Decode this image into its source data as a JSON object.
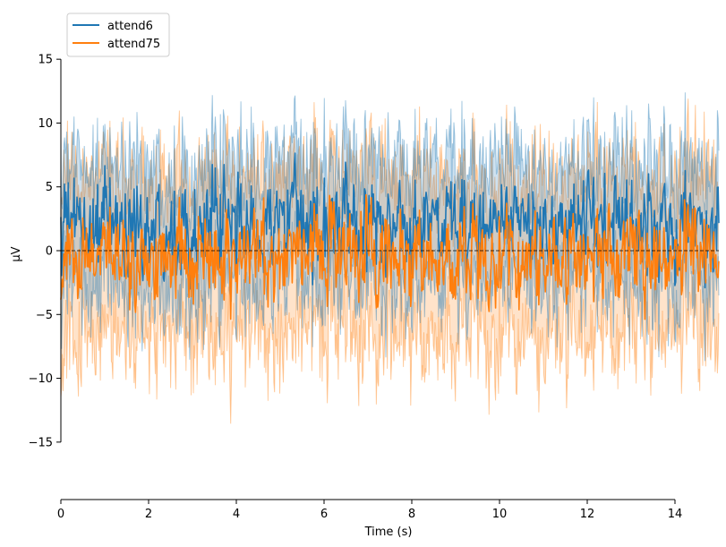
{
  "chart_data": {
    "type": "line",
    "xlabel": "Time (s)",
    "ylabel": "µV",
    "xlim": [
      0,
      15
    ],
    "ylim": [
      -19.5,
      19.5
    ],
    "x_ticks": [
      0,
      2,
      4,
      6,
      8,
      10,
      12,
      14
    ],
    "x_tick_labels": [
      "0",
      "2",
      "4",
      "6",
      "8",
      "10",
      "12",
      "14"
    ],
    "y_ticks": [
      -15,
      -10,
      -5,
      0,
      5,
      10,
      15
    ],
    "y_tick_labels": [
      "−15",
      "−10",
      "−5",
      "0",
      "5",
      "10",
      "15"
    ],
    "x_axis_span": [
      0,
      14
    ],
    "y_axis_span": [
      -15,
      15
    ],
    "legend_position": "top-left",
    "zero_line": true,
    "series": [
      {
        "name": "attend6",
        "color": "#1f77b4",
        "mean_level": 2.0,
        "mean_spread": 2.5,
        "band_half_width": 5.0,
        "samples": 900
      },
      {
        "name": "attend75",
        "color": "#ff7f0e",
        "mean_level": -0.5,
        "mean_spread": 2.5,
        "band_half_width": 6.5,
        "samples": 900
      }
    ]
  }
}
